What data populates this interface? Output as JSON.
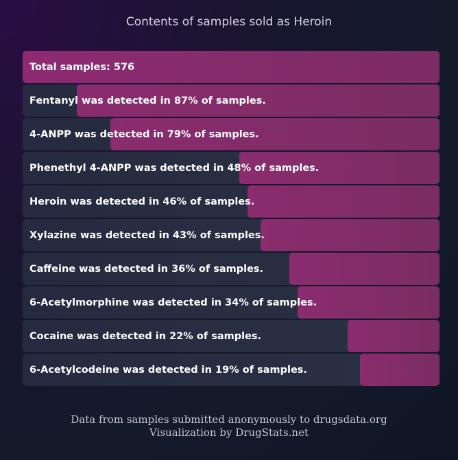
{
  "chart_data": {
    "type": "bar",
    "title": "Contents of samples sold as Heroin",
    "total_label": "Total samples: 576",
    "total_samples": 576,
    "orientation": "horizontal",
    "bars_aligned": "right",
    "categories": [
      "Fentanyl",
      "4-ANPP",
      "Phenethyl 4-ANPP",
      "Heroin",
      "Xylazine",
      "Caffeine",
      "6-Acetylmorphine",
      "Cocaine",
      "6-Acetylcodeine"
    ],
    "values": [
      87,
      79,
      48,
      46,
      43,
      36,
      34,
      22,
      19
    ],
    "labels": [
      "Fentanyl was detected in 87% of samples.",
      "4-ANPP was detected in 79% of samples.",
      "Phenethyl 4-ANPP was detected in 48% of samples.",
      "Heroin was detected in 46% of samples.",
      "Xylazine was detected in 43% of samples.",
      "Caffeine was detected in 36% of samples.",
      "6-Acetylmorphine was detected in 34% of samples.",
      "Cocaine was detected in 22% of samples.",
      "6-Acetylcodeine was detected in 19% of samples."
    ],
    "unit": "%",
    "xlim": [
      0,
      100
    ],
    "colors": {
      "bar": "#862c6a",
      "track": "#282d42"
    }
  },
  "footer": {
    "line1": "Data from samples submitted anonymously to drugsdata.org",
    "line2": "Visualization by DrugStats.net"
  }
}
